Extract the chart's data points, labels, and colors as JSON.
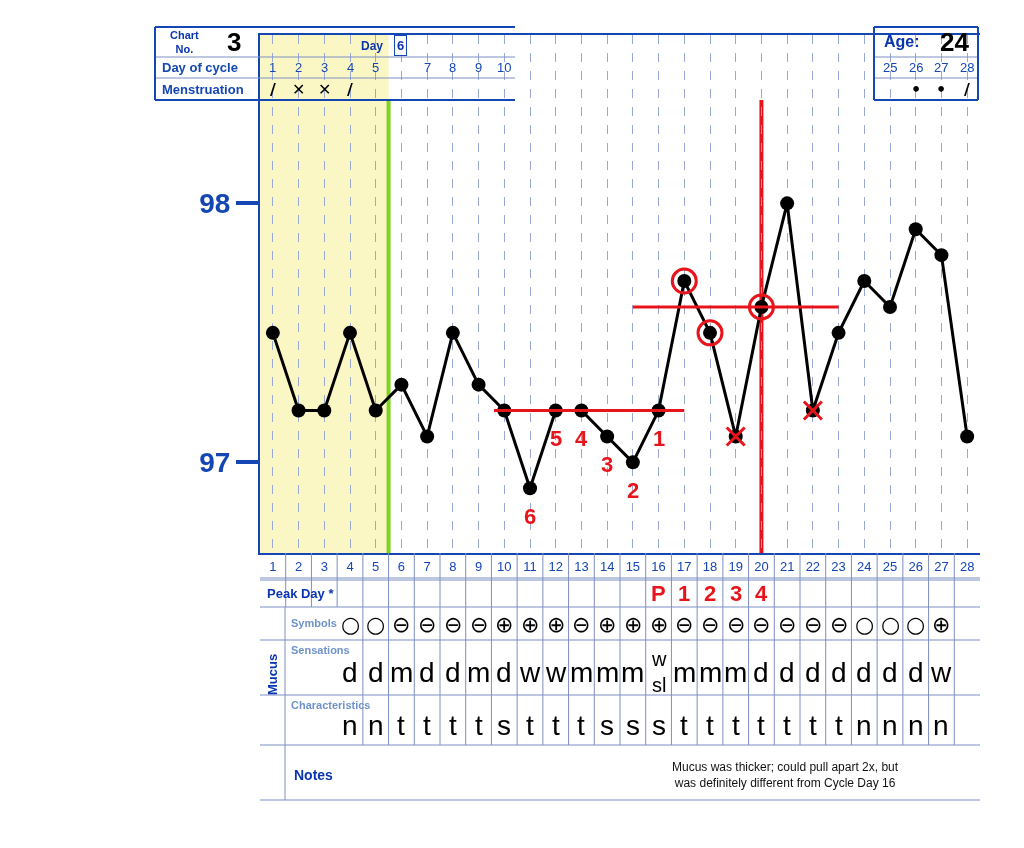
{
  "chart_data": [
    {
      "type": "line",
      "x": [
        1,
        2,
        3,
        4,
        5,
        6,
        7,
        8,
        9,
        10,
        11,
        12,
        13,
        14,
        15,
        16,
        17,
        18,
        19,
        20,
        21,
        22,
        23,
        24,
        25,
        26,
        27,
        28
      ],
      "xlim": [
        0.5,
        28.5
      ],
      "xticks": [
        1,
        2,
        3,
        4,
        5,
        6,
        7,
        8,
        9,
        10,
        11,
        12,
        13,
        14,
        15,
        16,
        17,
        18,
        19,
        20,
        21,
        22,
        23,
        24,
        25,
        26,
        27,
        28
      ],
      "ylim": [
        96.65,
        98.65
      ],
      "yticks": [
        97,
        98
      ],
      "grid": "x",
      "marker": "circle",
      "series": [
        {
          "type": "line",
          "color": "#000000",
          "values": [
            97.5,
            97.2,
            97.2,
            97.5,
            97.2,
            97.3,
            97.1,
            97.5,
            97.3,
            97.2,
            96.9,
            97.2,
            97.2,
            97.1,
            97.0,
            97.2,
            97.7,
            97.5,
            97.1,
            97.6,
            98.0,
            97.2,
            97.5,
            97.7,
            97.6,
            97.9,
            97.8,
            97.1
          ]
        },
        {
          "type": "line",
          "color": "#e8141b",
          "marker": "none",
          "x": [
            9.6,
            17
          ],
          "values": [
            97.2,
            97.2
          ]
        },
        {
          "type": "line",
          "color": "#e8141b",
          "marker": "none",
          "x": [
            15,
            23
          ],
          "values": [
            97.6,
            97.6
          ]
        },
        {
          "type": "scatter",
          "color": "#e8141b",
          "marker": "circle",
          "x": [
            17,
            18,
            20
          ],
          "values": [
            97.7,
            97.5,
            97.6
          ]
        },
        {
          "type": "scatter",
          "color": "#e8141b",
          "marker": "cross",
          "x": [
            19,
            22
          ],
          "values": [
            97.1,
            97.2
          ]
        }
      ],
      "ref_lines": [
        {
          "axis": "x",
          "value": 5.5,
          "color": "#7ed321"
        },
        {
          "axis": "x",
          "value": 20,
          "color": "#e8141b"
        }
      ],
      "bands": [
        {
          "axis": "x",
          "from": 0.5,
          "to": 5.5,
          "color": "#fbf7c4"
        }
      ],
      "annotations": [
        {
          "text": "6",
          "x": 11,
          "y": 96.9
        },
        {
          "text": "5",
          "x": 12,
          "y": 97.2
        },
        {
          "text": "4",
          "x": 13,
          "y": 97.2
        },
        {
          "text": "3",
          "x": 14,
          "y": 97.1
        },
        {
          "text": "2",
          "x": 15,
          "y": 97.0
        },
        {
          "text": "1",
          "x": 16,
          "y": 97.2
        }
      ]
    },
    {
      "type": "other",
      "y_categories": [
        "Peak Day *",
        "Symbols",
        "Sensations",
        "Characteristics",
        "Notes"
      ],
      "colors": [
        "#e8141b",
        "#000000",
        "#000000",
        "#000000"
      ],
      "cell_labels": [
        [
          null,
          null,
          null,
          null,
          null,
          null,
          null,
          null,
          null,
          null,
          null,
          null,
          null,
          null,
          null,
          "P",
          "1",
          "2",
          "3",
          "4",
          null,
          null,
          null,
          null,
          null,
          null,
          null,
          null
        ],
        [
          null,
          null,
          null,
          "○",
          "○",
          "⊖",
          "⊖",
          "⊖",
          "⊖",
          "⊕",
          "⊕",
          "⊕",
          "⊖",
          "⊕",
          "⊕",
          "⊕",
          "⊖",
          "⊖",
          "⊖",
          "⊖",
          "⊖",
          "⊖",
          "⊖",
          "○",
          "○",
          "○",
          "⊕",
          null
        ],
        [
          null,
          null,
          null,
          "d",
          "d",
          "m",
          "d",
          "d",
          "m",
          "d",
          "w",
          "w",
          "m",
          "m",
          "m",
          "w\nsl",
          "m",
          "m",
          "m",
          "d",
          "d",
          "d",
          "d",
          "d",
          "d",
          "d",
          "w",
          null
        ],
        [
          null,
          null,
          null,
          "n",
          "n",
          "t",
          "t",
          "t",
          "t",
          "s",
          "t",
          "t",
          "t",
          "s",
          "s",
          "s",
          "t",
          "t",
          "t",
          "t",
          "t",
          "t",
          "t",
          "n",
          "n",
          "n",
          "n",
          null
        ]
      ],
      "annotations": [
        "Mucus",
        "Mucus was thicker; could pull apart 2x, but\nwas definitely different from Cycle Day 16"
      ]
    },
    {
      "type": "other",
      "xlabel": "Day of cycle",
      "y_categories": [
        "Menstruation"
      ],
      "categories": [
        "1",
        "2",
        "3",
        "4",
        "5",
        null,
        "7",
        "8",
        "9",
        "10",
        "25",
        "26",
        "27",
        "28"
      ],
      "cell_labels": [
        [
          "/",
          "✕",
          "✕",
          "/",
          null,
          null,
          null,
          null,
          null,
          null,
          null,
          "•",
          "•",
          "/"
        ]
      ],
      "annotations": [
        "Chart No.",
        "3",
        "Day",
        "6",
        "Age:",
        "24"
      ]
    }
  ]
}
